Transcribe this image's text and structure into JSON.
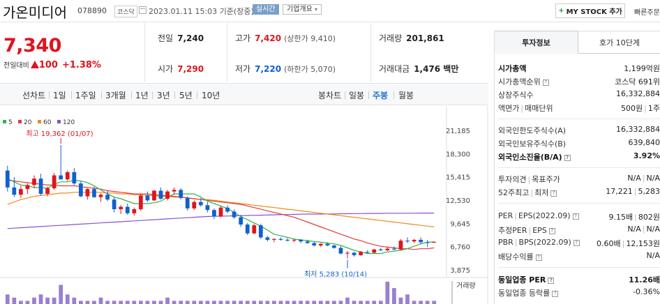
{
  "header": {
    "company": "가온미디어",
    "ticker": "078890",
    "market": "코스닥",
    "datetime": "2023.01.11 15:03",
    "basis": "기준(장중)",
    "realtime_label": "실시간",
    "overview_label": "기업개요",
    "mystock_label": "MY STOCK 추가",
    "quick_label": "빠른주문"
  },
  "price": {
    "current": "7,340",
    "change_label": "전일대비",
    "change_value": "100",
    "change_pct": "+1.38%"
  },
  "quote": {
    "prev_label": "전일",
    "prev": "7,240",
    "high_label": "고가",
    "high": "7,420",
    "high_limit": "(상한가 9,410)",
    "volume_label": "거래량",
    "volume": "201,861",
    "open_label": "시가",
    "open": "7,290",
    "low_label": "저가",
    "low": "7,220",
    "low_limit": "(하한가 5,070)",
    "amount_label": "거래대금",
    "amount": "1,476 백만"
  },
  "period_tabs": {
    "line_label": "선차트",
    "line": [
      "1일",
      "1주일",
      "3개월",
      "1년",
      "3년",
      "5년",
      "10년"
    ],
    "candle_label": "봉차트",
    "candle": [
      "일봉",
      "주봉",
      "월봉"
    ],
    "active": "주봉"
  },
  "right_panel": {
    "tab_info": "투자정보",
    "tab_orderbook": "호가 10단계",
    "rows": {
      "mcap_k": "시가총액",
      "mcap_v": "1,199억원",
      "rank_k": "시가총액순위",
      "rank_v": "코스닥 691위",
      "shares_k": "상장주식수",
      "shares_v": "16,332,884",
      "par_k1": "액면가",
      "par_k2": "매매단위",
      "par_v1": "500원",
      "par_v2": "1주",
      "flimit_k": "외국인한도주식수(A)",
      "flimit_v": "16,332,884",
      "fhold_k": "외국인보유주식수(B)",
      "fhold_v": "639,840",
      "fratio_k": "외국인소진율(B/A)",
      "fratio_v": "3.92%",
      "opinion_k1": "투자의견",
      "opinion_k2": "목표주가",
      "opinion_v1": "N/A",
      "opinion_v2": "N/A",
      "w52_k1": "52주최고",
      "w52_k2": "최저",
      "w52_v1": "17,221",
      "w52_v2": "5,283",
      "per_k1": "PER",
      "per_k2": "EPS(2022.09)",
      "per_v1": "9.15배",
      "per_v2": "802원",
      "eper_k1": "추정PER",
      "eper_k2": "EPS",
      "eper_v1": "N/A",
      "eper_v2": "N/A",
      "pbr_k1": "PBR",
      "pbr_k2": "BPS(2022.09)",
      "pbr_v1": "0.60배",
      "pbr_v2": "12,153원",
      "div_k": "배당수익률",
      "div_v": "N/A",
      "sper_k": "동일업종 PER",
      "sper_v": "11.26배",
      "srate_k": "동일업종 등락률",
      "srate_v": "-0.36%"
    }
  },
  "chart_data": {
    "type": "candlestick",
    "period": "weekly",
    "ma_legend": [
      {
        "name": "5",
        "color": "#2fb34a"
      },
      {
        "name": "20",
        "color": "#e23a3a"
      },
      {
        "name": "60",
        "color": "#f08a1a"
      },
      {
        "name": "120",
        "color": "#8a4fd0"
      }
    ],
    "y_ticks": [
      "21,185",
      "18,300",
      "15,415",
      "12,530",
      "9,645",
      "6,760",
      "3,875"
    ],
    "ylim": [
      3875,
      21185
    ],
    "high_annotation": "최고 19,362 (01/07)",
    "low_annotation": "최저 5,283 (10/14)",
    "volume_label": "거래량",
    "candles": [
      [
        16200,
        16800,
        13600,
        14100
      ],
      [
        14100,
        15400,
        12900,
        13200
      ],
      [
        13200,
        14300,
        12800,
        13900
      ],
      [
        13900,
        14600,
        13300,
        14400
      ],
      [
        14400,
        15600,
        14000,
        15200
      ],
      [
        15200,
        15800,
        13100,
        13300
      ],
      [
        13300,
        14200,
        13000,
        14000
      ],
      [
        14000,
        15900,
        13800,
        15600
      ],
      [
        15600,
        19362,
        15200,
        15100
      ],
      [
        15100,
        16200,
        14900,
        16000
      ],
      [
        16000,
        16500,
        14400,
        14600
      ],
      [
        14600,
        14900,
        12900,
        13000
      ],
      [
        13000,
        14000,
        12600,
        13900
      ],
      [
        13900,
        14200,
        12800,
        12900
      ],
      [
        12900,
        13400,
        12300,
        13200
      ],
      [
        13200,
        13700,
        12400,
        12600
      ],
      [
        12600,
        12900,
        11000,
        11400
      ],
      [
        11400,
        11900,
        10800,
        11700
      ],
      [
        11700,
        12100,
        10700,
        10900
      ],
      [
        10900,
        11600,
        10600,
        11400
      ],
      [
        11400,
        13300,
        11200,
        13100
      ],
      [
        13100,
        13600,
        12300,
        12500
      ],
      [
        12500,
        13800,
        12400,
        13700
      ],
      [
        13700,
        14100,
        12600,
        12700
      ],
      [
        12700,
        13800,
        12500,
        13600
      ],
      [
        13600,
        14100,
        13200,
        13800
      ],
      [
        13800,
        14000,
        12600,
        12800
      ],
      [
        12800,
        13000,
        11200,
        11500
      ],
      [
        11500,
        12500,
        11300,
        12300
      ],
      [
        12300,
        12800,
        11700,
        11900
      ],
      [
        11900,
        12300,
        11000,
        11300
      ],
      [
        11300,
        11500,
        10200,
        10500
      ],
      [
        10500,
        11800,
        10400,
        11600
      ],
      [
        11600,
        11900,
        10900,
        11100
      ],
      [
        11100,
        11400,
        10200,
        10400
      ],
      [
        10400,
        10700,
        9200,
        9500
      ],
      [
        9500,
        9700,
        8200,
        8400
      ],
      [
        8400,
        9600,
        8300,
        9400
      ],
      [
        9400,
        9600,
        7700,
        7900
      ],
      [
        7900,
        8100,
        7400,
        7600
      ],
      [
        7600,
        7800,
        7300,
        7700
      ],
      [
        7700,
        7900,
        7500,
        7600
      ],
      [
        7600,
        7800,
        7400,
        7500
      ],
      [
        7500,
        7700,
        7300,
        7600
      ],
      [
        7600,
        7700,
        7200,
        7400
      ],
      [
        7400,
        7600,
        7100,
        7200
      ],
      [
        7200,
        7400,
        6800,
        6900
      ],
      [
        6900,
        7200,
        6700,
        7100
      ],
      [
        7100,
        7300,
        6800,
        6900
      ],
      [
        6900,
        7000,
        6500,
        6600
      ],
      [
        6600,
        6800,
        5800,
        5900
      ],
      [
        5900,
        6200,
        5283,
        6000
      ],
      [
        6000,
        6100,
        5500,
        5700
      ],
      [
        5700,
        6200,
        5600,
        6100
      ],
      [
        6100,
        6300,
        5900,
        6000
      ],
      [
        6000,
        6500,
        5900,
        6400
      ],
      [
        6400,
        6600,
        6200,
        6300
      ],
      [
        6300,
        6700,
        6200,
        6500
      ],
      [
        6500,
        6800,
        6300,
        6400
      ],
      [
        6400,
        7700,
        6300,
        7500
      ],
      [
        7500,
        7900,
        7200,
        7400
      ],
      [
        7400,
        7700,
        7200,
        7600
      ],
      [
        7600,
        7900,
        7100,
        7300
      ],
      [
        7300,
        7600,
        6700,
        7240
      ],
      [
        7290,
        7420,
        7220,
        7340
      ]
    ],
    "ma5": [
      15200,
      14800,
      14400,
      14300,
      14100,
      14100,
      14000,
      14500,
      14800,
      14800,
      15000,
      14900,
      14700,
      14300,
      13800,
      13300,
      12900,
      12700,
      12400,
      12100,
      12100,
      12100,
      12200,
      12400,
      12900,
      13300,
      13300,
      13300,
      13300,
      12900,
      12400,
      12100,
      11800,
      11500,
      11000,
      10500,
      10100,
      9700,
      9300,
      8800,
      8300,
      8100,
      7900,
      7700,
      7600,
      7500,
      7400,
      7300,
      7200,
      7100,
      6900,
      6600,
      6300,
      6100,
      5900,
      5900,
      5900,
      6100,
      6200,
      6300,
      6500,
      6800,
      7100,
      7300,
      7350
    ],
    "ma20": [
      15000,
      14900,
      14800,
      14700,
      14600,
      14500,
      14400,
      14400,
      14300,
      14300,
      14300,
      14200,
      14100,
      14000,
      13900,
      13700,
      13600,
      13500,
      13400,
      13300,
      13300,
      13300,
      13200,
      13100,
      13100,
      13000,
      12900,
      12800,
      12700,
      12600,
      12500,
      12400,
      12300,
      12200,
      12100,
      12000,
      11800,
      11600,
      11400,
      11200,
      11000,
      10800,
      10600,
      10400,
      10100,
      9800,
      9500,
      9200,
      8900,
      8600,
      8300,
      8000,
      7700,
      7500,
      7200,
      7000,
      6800,
      6700,
      6600,
      6500,
      6500,
      6400,
      6500,
      6500,
      6600
    ],
    "ma60": [
      12000,
      12300,
      12600,
      12800,
      13000,
      13100,
      13200,
      13300,
      13400,
      13400,
      13500,
      13500,
      13500,
      13500,
      13500,
      13400,
      13400,
      13300,
      13300,
      13200,
      13200,
      13100,
      13100,
      13000,
      13000,
      12900,
      12900,
      12800,
      12700,
      12600,
      12600,
      12500,
      12400,
      12300,
      12200,
      12100,
      12000,
      11900,
      11800,
      11700,
      11600,
      11500,
      11400,
      11300,
      11200,
      11100,
      11000,
      10900,
      10800,
      10700,
      10600,
      10500,
      10400,
      10300,
      10200,
      10100,
      10000,
      9900,
      9800,
      9700,
      9600,
      9500,
      9400,
      9300,
      9200
    ],
    "ma120": [
      9000,
      9050,
      9100,
      9150,
      9200,
      9250,
      9300,
      9350,
      9400,
      9450,
      9500,
      9550,
      9600,
      9650,
      9700,
      9750,
      9800,
      9850,
      9900,
      9950,
      10000,
      10050,
      10100,
      10150,
      10200,
      10250,
      10300,
      10350,
      10400,
      10450,
      10500,
      10520,
      10540,
      10560,
      10580,
      10600,
      10620,
      10640,
      10660,
      10680,
      10700,
      10720,
      10740,
      10760,
      10780,
      10800,
      10800,
      10800,
      10820,
      10820,
      10840,
      10840,
      10860,
      10860,
      10880,
      10880,
      10880,
      10900,
      10900,
      10900,
      10900,
      10900,
      10920,
      10920,
      10920
    ],
    "volume": [
      3,
      2,
      1,
      1,
      2,
      3,
      2,
      2,
      6,
      3,
      2,
      1,
      1,
      1,
      2,
      1,
      1,
      1,
      1,
      1,
      1,
      1,
      1,
      1,
      2,
      1,
      1,
      1,
      1,
      1,
      1,
      1,
      1,
      1,
      1,
      1,
      1,
      1,
      1,
      1,
      1,
      1,
      1,
      1,
      1,
      1,
      1,
      1,
      1,
      1,
      1,
      2,
      1,
      1,
      1,
      1,
      1,
      7,
      5,
      2,
      3,
      1,
      1,
      1,
      1
    ]
  }
}
